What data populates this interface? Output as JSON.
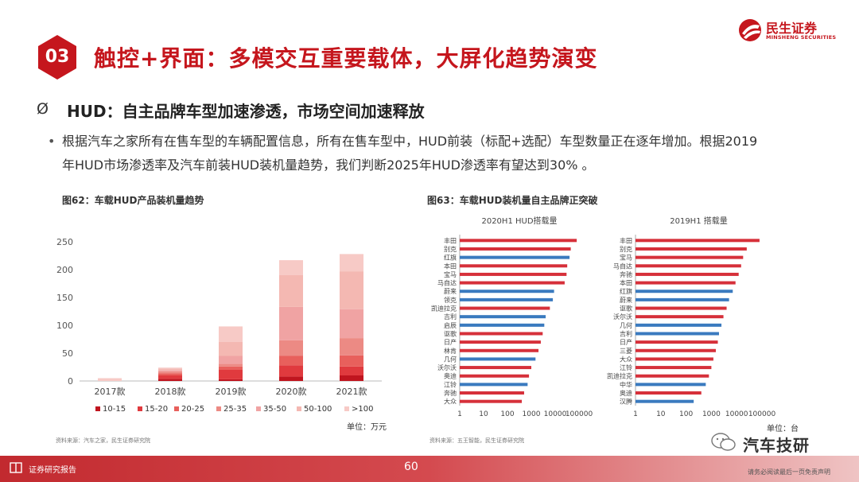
{
  "header": {
    "section_number": "03",
    "title": "触控+界面：多模交互重要载体，大屏化趋势演变",
    "logo_cn": "民生证券",
    "logo_en": "MINSHENG SECURITIES"
  },
  "content": {
    "subtitle_bullet": "Ø",
    "subtitle": "HUD：自主品牌车型加速渗透，市场空间加速释放",
    "bullet": "•",
    "body_line1": "根据汽车之家所有在售车型的车辆配置信息，所有在售车型中，HUD前装（标配+选配）车型数量正在逐年增加。根据2019",
    "body_line2": "年HUD市场渗透率及汽车前装HUD装机量趋势，我们判断2025年HUD渗透率有望达到30% 。"
  },
  "figure62": {
    "title": "图62：车载HUD产品装机量趋势",
    "unit": "单位：万元",
    "source": "资料来源：汽车之家，民生证券研究院"
  },
  "figure63": {
    "title": "图63：车载HUD装机量自主品牌正突破",
    "unit": "单位：台",
    "source": "资料来源：五王智能，民生证券研究院"
  },
  "footer": {
    "label": "证券研究报告",
    "page": "60",
    "disclaimer": "请务必阅读最后一页免责声明",
    "watermark": "汽车技研"
  },
  "colors": {
    "brand_red": "#c5161d",
    "bar_red": "#d6303a",
    "bar_blue": "#3a7abf",
    "stack": [
      "#c0151f",
      "#e03a3e",
      "#e8605c",
      "#ec8a84",
      "#f0a3a3",
      "#f4b8b2",
      "#f7cac6"
    ]
  },
  "chart_data": [
    {
      "type": "bar",
      "stacked": true,
      "categories": [
        "2017款",
        "2018款",
        "2019款",
        "2020款",
        "2021款"
      ],
      "ylim": [
        0,
        250
      ],
      "yticks": [
        0,
        50,
        100,
        150,
        200,
        250
      ],
      "legend_position": "bottom",
      "series": [
        {
          "name": "10-15",
          "values": [
            0,
            4,
            3,
            8,
            10
          ]
        },
        {
          "name": "15-20",
          "values": [
            0,
            6,
            17,
            20,
            16
          ]
        },
        {
          "name": "20-25",
          "values": [
            0,
            4,
            6,
            17,
            20
          ]
        },
        {
          "name": "25-35",
          "values": [
            0,
            3,
            5,
            28,
            31
          ]
        },
        {
          "name": "35-50",
          "values": [
            0,
            2,
            14,
            60,
            52
          ]
        },
        {
          "name": "50-100",
          "values": [
            0,
            3,
            25,
            57,
            68
          ]
        },
        {
          "name": ">100",
          "values": [
            5,
            2,
            28,
            27,
            31
          ]
        }
      ]
    },
    {
      "type": "bar",
      "orientation": "horizontal",
      "title": "2020H1 HUD搭载量",
      "xscale": "log",
      "xlim": [
        1,
        100000
      ],
      "xticks": [
        1,
        10,
        100,
        1000,
        10000,
        100000
      ],
      "categories": [
        "丰田",
        "别克",
        "红旗",
        "本田",
        "宝马",
        "马自达",
        "蔚来",
        "领克",
        "凯迪拉克",
        "吉利",
        "启辰",
        "讴歌",
        "日产",
        "林肯",
        "几何",
        "沃尔沃",
        "奥迪",
        "江铃",
        "奔驰",
        "大众"
      ],
      "values": [
        80000,
        45000,
        40000,
        32000,
        30000,
        25000,
        9000,
        8000,
        6000,
        4000,
        3500,
        3000,
        2500,
        2000,
        1500,
        1000,
        800,
        700,
        500,
        400
      ],
      "bar_colors": [
        "red",
        "red",
        "blue",
        "red",
        "red",
        "red",
        "blue",
        "blue",
        "red",
        "blue",
        "blue",
        "red",
        "red",
        "red",
        "blue",
        "red",
        "red",
        "blue",
        "red",
        "red"
      ]
    },
    {
      "type": "bar",
      "orientation": "horizontal",
      "title": "2019H1 搭载量",
      "xscale": "log",
      "xlim": [
        1,
        100000
      ],
      "xticks": [
        1,
        10,
        100,
        1000,
        10000,
        100000
      ],
      "categories": [
        "丰田",
        "别克",
        "宝马",
        "马自达",
        "奔驰",
        "本田",
        "红旗",
        "蔚来",
        "讴歌",
        "沃尔沃",
        "几何",
        "吉利",
        "日产",
        "三菱",
        "大众",
        "江铃",
        "凯迪拉克",
        "中华",
        "奥迪",
        "汉腾"
      ],
      "values": [
        80000,
        25000,
        18000,
        15000,
        12000,
        9000,
        7000,
        5000,
        4000,
        3000,
        2500,
        2000,
        1800,
        1500,
        1200,
        1000,
        800,
        600,
        400,
        200
      ],
      "bar_colors": [
        "red",
        "red",
        "red",
        "red",
        "red",
        "red",
        "blue",
        "blue",
        "red",
        "red",
        "blue",
        "blue",
        "red",
        "red",
        "red",
        "red",
        "red",
        "blue",
        "red",
        "blue"
      ]
    }
  ]
}
